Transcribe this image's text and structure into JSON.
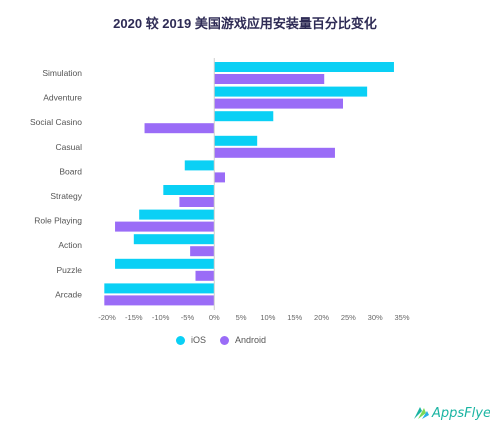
{
  "chart_data": {
    "type": "bar",
    "orientation": "horizontal",
    "title": "2020 较 2019 美国游戏应用安装量百分比变化",
    "categories": [
      "Simulation",
      "Adventure",
      "Social Casino",
      "Casual",
      "Board",
      "Strategy",
      "Role Playing",
      "Action",
      "Puzzle",
      "Arcade"
    ],
    "series": [
      {
        "name": "iOS",
        "color": "#0ad0f5",
        "values": [
          33.5,
          28.5,
          11,
          8,
          -5.5,
          -9.5,
          -14,
          -15,
          -18.5,
          -20.5
        ]
      },
      {
        "name": "Android",
        "color": "#9a6cf7",
        "values": [
          20.5,
          24,
          -13,
          22.5,
          2,
          -6.5,
          -18.5,
          -4.5,
          -3.5,
          -20.5
        ]
      }
    ],
    "x_ticks": [
      "-20%",
      "-15%",
      "-10%",
      "-5%",
      "0%",
      "5%",
      "10%",
      "15%",
      "20%",
      "25%",
      "30%",
      "35%"
    ],
    "xlim": [
      -20,
      35
    ],
    "legend_position": "bottom",
    "grid": false
  },
  "legend": {
    "ios_label": "iOS",
    "android_label": "Android",
    "ios_icon": "circle-icon",
    "android_icon": "circle-icon"
  },
  "brand": {
    "logo_icon": "appsflyer-logo-icon",
    "logo_text": "AppsFlyer",
    "accent_color": "#19b4a2"
  }
}
